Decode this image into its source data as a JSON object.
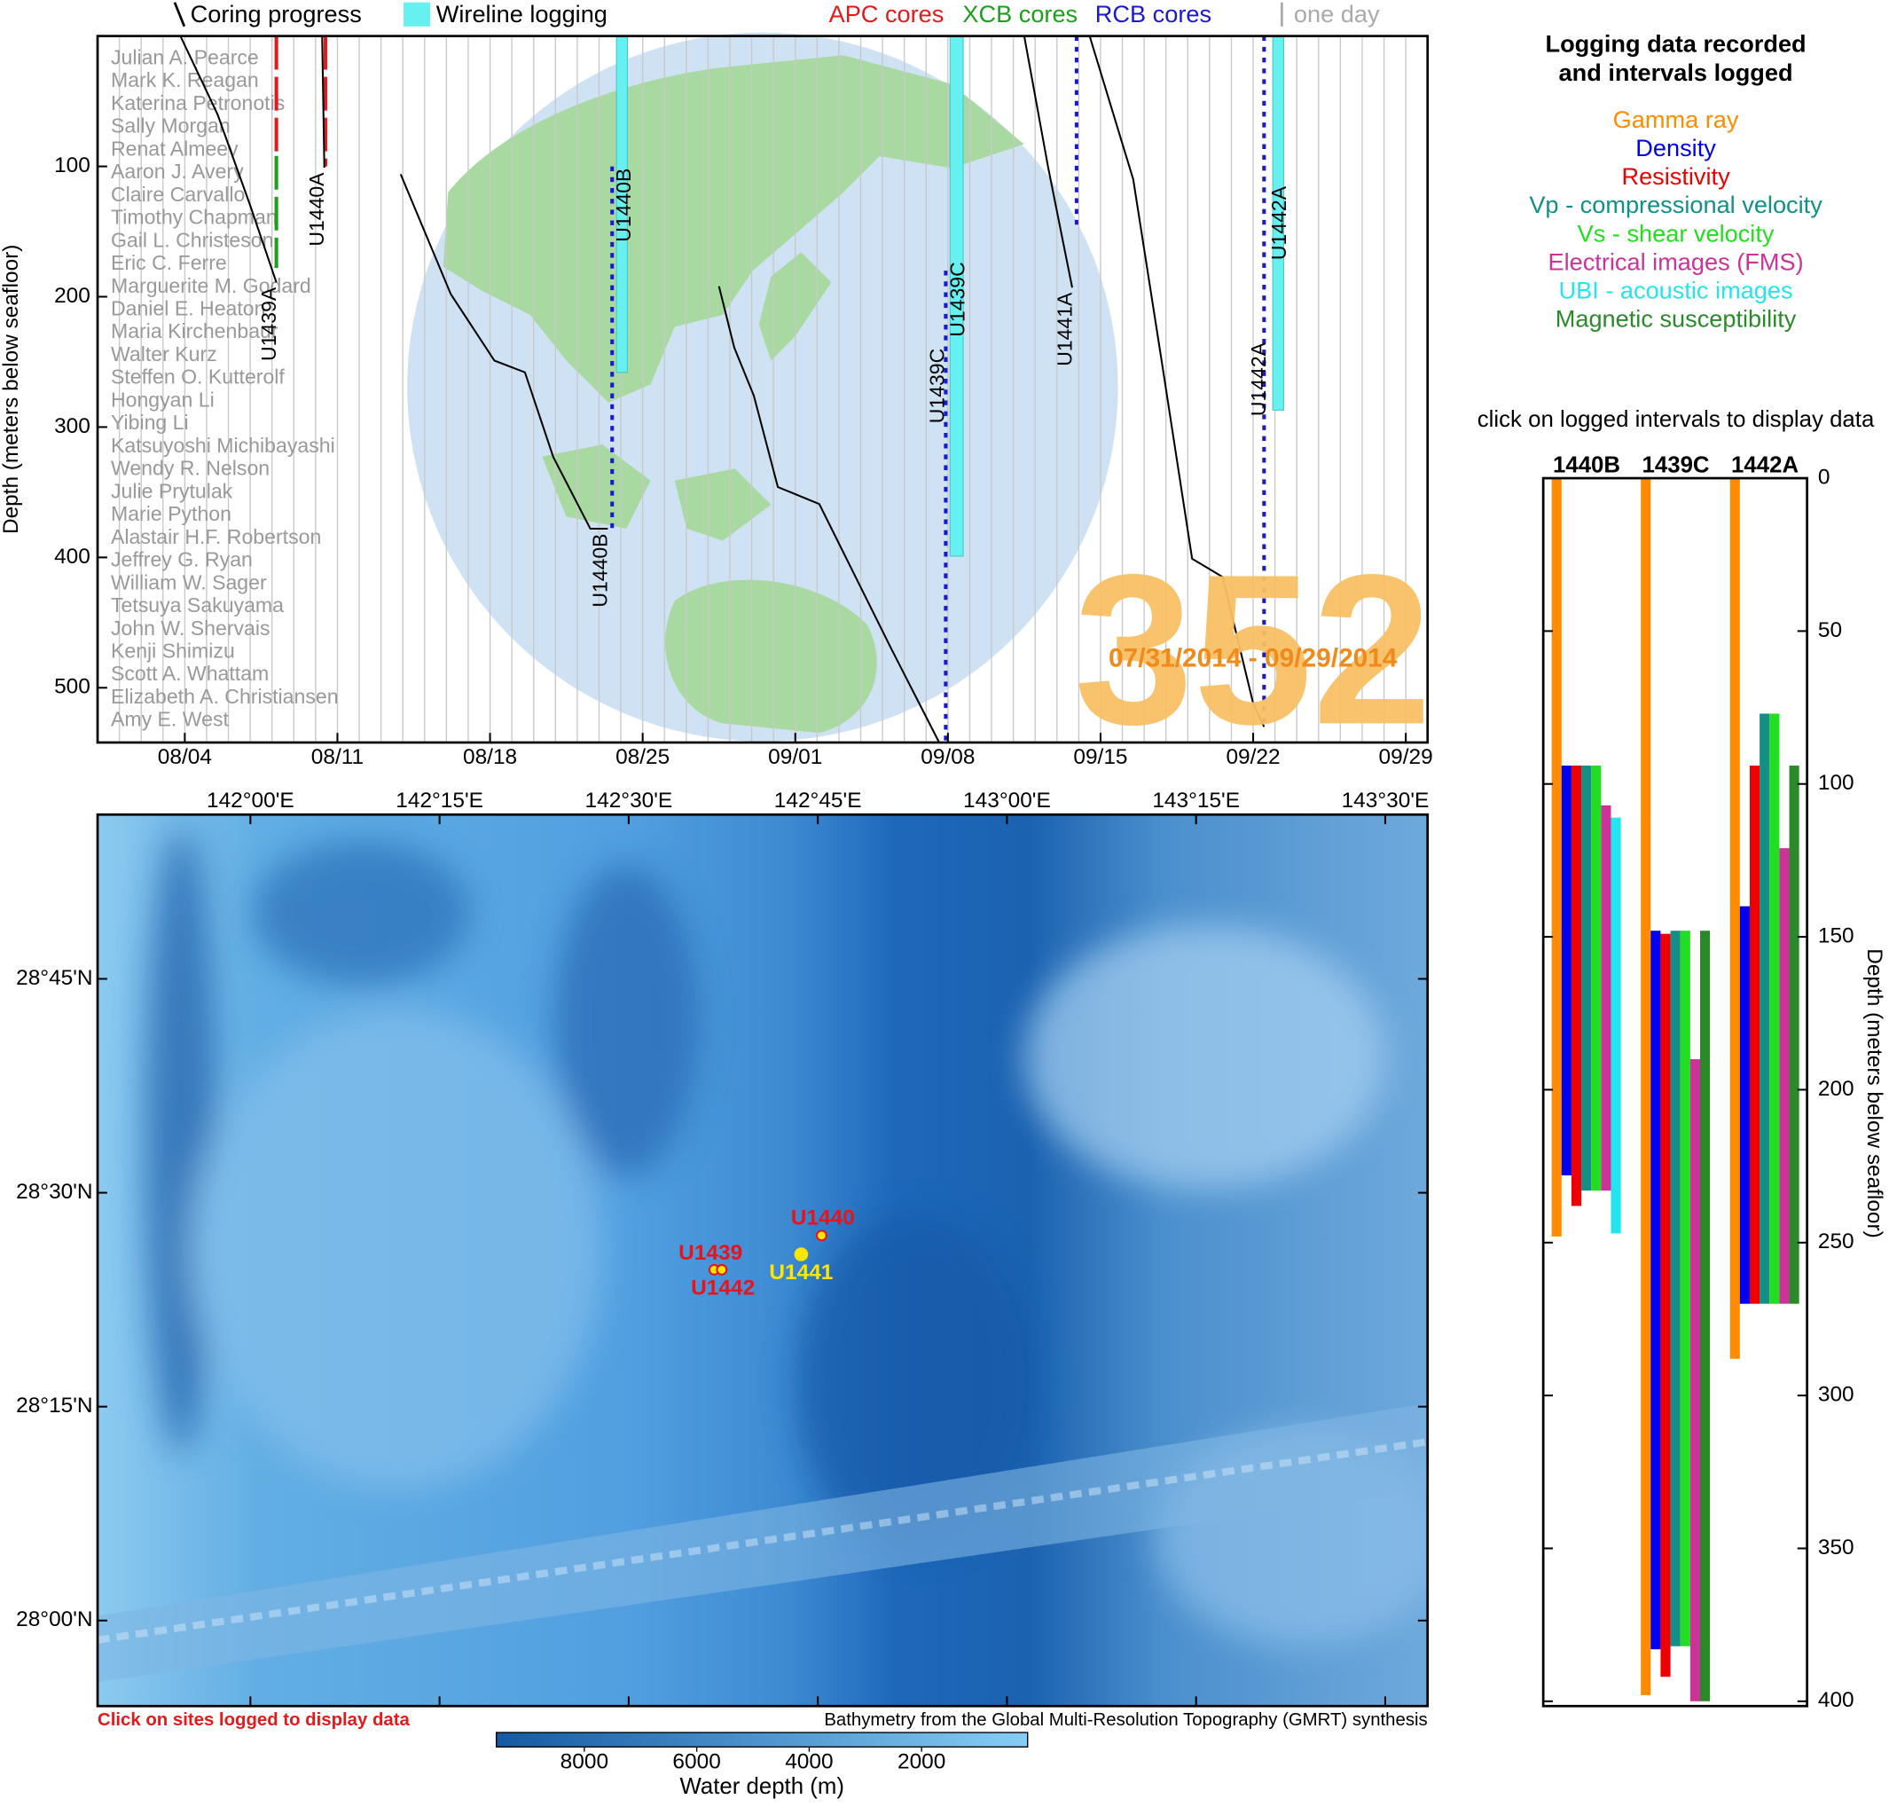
{
  "chart_data": [
    {
      "type": "timeline",
      "legend": [
        {
          "label": "Coring progress",
          "color": "#000000"
        },
        {
          "label": "Wireline logging",
          "color": "#66f0f0"
        },
        {
          "label": "APC cores",
          "color": "#e31a1c"
        },
        {
          "label": "XCB cores",
          "color": "#1e9e1e"
        },
        {
          "label": "RCB cores",
          "color": "#1a1acc"
        },
        {
          "label": "one day",
          "color": "#aaaaaa"
        }
      ],
      "ylabel": "Depth (meters below seafloor)",
      "xlim": [
        0,
        61
      ],
      "xticks": [
        {
          "value": 4,
          "label": "08/04"
        },
        {
          "value": 11,
          "label": "08/11"
        },
        {
          "value": 18,
          "label": "08/18"
        },
        {
          "value": 25,
          "label": "08/25"
        },
        {
          "value": 32,
          "label": "09/01"
        },
        {
          "value": 39,
          "label": "09/08"
        },
        {
          "value": 46,
          "label": "09/15"
        },
        {
          "value": 53,
          "label": "09/22"
        },
        {
          "value": 60,
          "label": "09/29"
        }
      ],
      "ylim": [
        0,
        542
      ],
      "yticks": [
        100,
        200,
        300,
        400,
        500
      ],
      "grid": true,
      "coring": [
        {
          "label": "U1439A",
          "x": [
            3.8,
            5.5,
            7,
            8.2
          ],
          "values": [
            0,
            60,
            130,
            189
          ]
        },
        {
          "label": "U1440A",
          "x": [
            10.3,
            10.4
          ],
          "values": [
            0,
            101
          ]
        },
        {
          "label": "U1440B",
          "x": [
            13.9,
            16.2,
            18.2,
            19.6,
            20.9,
            22.6,
            23.4
          ],
          "values": [
            106,
            198,
            249,
            258,
            323,
            378,
            378
          ]
        },
        {
          "label": "U1439C",
          "x": [
            28.5,
            29.2,
            30.1,
            31.2,
            33.1,
            34.2,
            36.4,
            38.6
          ],
          "values": [
            192,
            239,
            276,
            346,
            359,
            396,
            470,
            542
          ]
        },
        {
          "label": "U1441A",
          "x": [
            42.5,
            43.6,
            44.7
          ],
          "values": [
            0,
            101,
            193
          ]
        },
        {
          "label": "U1442A",
          "x": [
            45.5,
            47.5,
            48.8,
            50.2,
            51.6,
            53.0,
            53.5
          ],
          "values": [
            0,
            110,
            249,
            401,
            415,
            512,
            530
          ]
        }
      ],
      "wireline": [
        {
          "label": "U1440B",
          "x": [
            23.8,
            24.3
          ],
          "top": 0,
          "bottom": 258
        },
        {
          "label": "U1439C",
          "x": [
            39.1,
            39.7
          ],
          "top": 0,
          "bottom": 399
        },
        {
          "label": "U1442A",
          "x": [
            53.9,
            54.4
          ],
          "top": 0,
          "bottom": 287
        }
      ],
      "cores": [
        {
          "x": 8.2,
          "top": 0,
          "bottom": 92,
          "color": "#e31a1c"
        },
        {
          "x": 8.2,
          "top": 92,
          "bottom": 178,
          "color": "#1e9e1e"
        },
        {
          "x": 10.45,
          "top": 0,
          "bottom": 100,
          "color": "#e31a1c"
        },
        {
          "x": 23.6,
          "top": 100,
          "bottom": 378,
          "color": "#1a1acc"
        },
        {
          "x": 38.9,
          "top": 180,
          "bottom": 542,
          "color": "#1a1acc"
        },
        {
          "x": 44.9,
          "top": 0,
          "bottom": 147,
          "color": "#1a1acc"
        },
        {
          "x": 53.5,
          "top": 0,
          "bottom": 530,
          "color": "#1a1acc"
        }
      ],
      "names": [
        "Julian A. Pearce",
        "Mark K. Reagan",
        "Katerina Petronotis",
        "Sally Morgan",
        "Renat Almeev",
        "Aaron J. Avery",
        "Claire Carvallo",
        "Timothy Chapman",
        "Gail L. Christeson",
        "Eric C. Ferre",
        "Marguerite M. Godard",
        "Daniel E. Heaton",
        "Maria Kirchenbaur",
        "Walter Kurz",
        "Steffen O. Kutterolf",
        "Hongyan Li",
        "Yibing Li",
        "Katsuyoshi Michibayashi",
        "Wendy R. Nelson",
        "Julie Prytulak",
        "Marie Python",
        "Alastair H.F. Robertson",
        "Jeffrey G. Ryan",
        "William W. Sager",
        "Tetsuya Sakuyama",
        "John W. Shervais",
        "Kenji Shimizu",
        "Scott A. Whattam",
        "Elizabeth A. Christiansen",
        "Amy E. West"
      ],
      "expedition": "352",
      "dates": "07/31/2014 - 09/29/2014"
    },
    {
      "type": "map",
      "xlim": [
        141.798,
        143.556
      ],
      "xticks": [
        {
          "value": 142,
          "label": "142°00'E"
        },
        {
          "value": 142.25,
          "label": "142°15'E"
        },
        {
          "value": 142.5,
          "label": "142°30'E"
        },
        {
          "value": 142.75,
          "label": "142°45'E"
        },
        {
          "value": 143,
          "label": "143°00'E"
        },
        {
          "value": 143.25,
          "label": "143°15'E"
        },
        {
          "value": 143.5,
          "label": "143°30'E"
        }
      ],
      "ylim": [
        27.9,
        28.942
      ],
      "yticks": [
        {
          "value": 28,
          "label": "28°00'N"
        },
        {
          "value": 28.25,
          "label": "28°15'N"
        },
        {
          "value": 28.5,
          "label": "28°30'N"
        },
        {
          "value": 28.75,
          "label": "28°45'N"
        }
      ],
      "sites": [
        {
          "name": "U1439",
          "lon": 142.613,
          "lat": 28.41,
          "color": "#e8131b"
        },
        {
          "name": "U1442",
          "lon": 142.623,
          "lat": 28.41,
          "color": "#e8131b"
        },
        {
          "name": "U1440",
          "lon": 142.755,
          "lat": 28.45,
          "color": "#e8131b"
        },
        {
          "name": "U1441",
          "lon": 142.728,
          "lat": 28.428,
          "color": "#ffe600"
        }
      ],
      "note": "Click on sites logged to display data",
      "credit": "Bathymetry from the Global Multi-Resolution Topography (GMRT) synthesis",
      "colorbar": {
        "label": "Water depth (m)",
        "clim": [
          9565,
          114
        ],
        "ticks": [
          8000,
          6000,
          4000,
          2000
        ]
      }
    },
    {
      "type": "interval-bar",
      "title": [
        "Logging data recorded",
        "and intervals logged"
      ],
      "note": "click on logged intervals to display data",
      "categories": [
        "1440B",
        "1439C",
        "1442A"
      ],
      "ylabel": "Depth (meters below seafloor)",
      "ylim": [
        0,
        400
      ],
      "yticks": [
        0,
        50,
        100,
        150,
        200,
        250,
        300,
        350,
        400
      ],
      "series": [
        {
          "name": "Gamma ray",
          "color": "#ff8c00",
          "low": [
            0,
            0,
            0
          ],
          "high": [
            248,
            398,
            288
          ]
        },
        {
          "name": "Density",
          "color": "#0000ee",
          "low": [
            94,
            148,
            140
          ],
          "high": [
            228,
            383,
            270
          ]
        },
        {
          "name": "Resistivity",
          "color": "#ee0000",
          "low": [
            94,
            149,
            94
          ],
          "high": [
            238,
            392,
            270
          ]
        },
        {
          "name": "Vp - compressional velocity",
          "color": "#138f86",
          "low": [
            94,
            148,
            77
          ],
          "high": [
            233,
            382,
            270
          ]
        },
        {
          "name": "Vs - shear velocity",
          "color": "#22dd22",
          "low": [
            94,
            148,
            77
          ],
          "high": [
            233,
            382,
            270
          ]
        },
        {
          "name": "Electrical images (FMS)",
          "color": "#cc3399",
          "low": [
            107,
            190,
            121
          ],
          "high": [
            233,
            400,
            270
          ]
        },
        {
          "name": "UBI - acoustic images",
          "color": "#22e5ef",
          "low": [
            111,
            null,
            null
          ],
          "high": [
            247,
            null,
            null
          ]
        },
        {
          "name": "Magnetic susceptibility",
          "color": "#2a8a2a",
          "low": [
            null,
            148,
            94
          ],
          "high": [
            null,
            400,
            270
          ]
        }
      ]
    }
  ]
}
